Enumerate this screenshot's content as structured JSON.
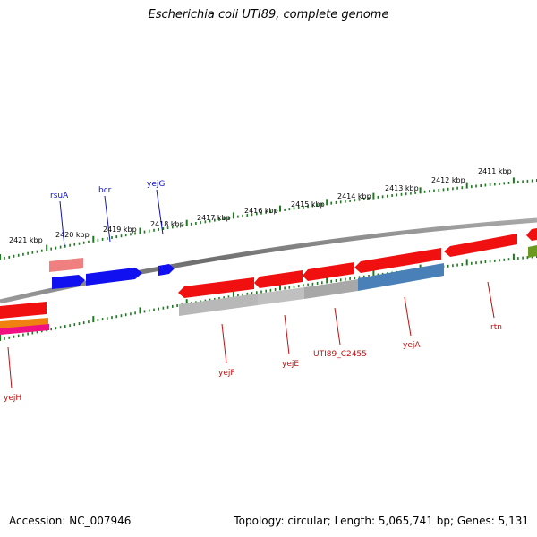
{
  "title": "Escherichia coli UTI89, complete genome",
  "footer": {
    "accession": "Accession: NC_007946",
    "summary": "Topology: circular; Length: 5,065,741 bp; Genes: 5,131"
  },
  "colors": {
    "backbone": "#7a7a7a",
    "ticks": "#1e7a1e",
    "tick_label": "#000000",
    "forward_label": "#1010c0",
    "reverse_label": "#c01010",
    "gene_red": "#f01010",
    "gene_blue": "#1010f0",
    "gene_pink": "#f08080",
    "gene_gray": "#b0b0b0",
    "gene_steel": "#4a80b8",
    "gene_orange": "#f08010",
    "gene_magenta": "#f01080",
    "gene_olive": "#6a9a20"
  },
  "scale_labels": [
    "2421 kbp",
    "2420 kbp",
    "2419 kbp",
    "2418 kbp",
    "2417 kbp",
    "2416 kbp",
    "2415 kbp",
    "2414 kbp",
    "2413 kbp",
    "2412 kbp",
    "2411 kbp"
  ],
  "forward_gene_labels": [
    "rsuA",
    "bcr",
    "yejG"
  ],
  "reverse_gene_labels": [
    "yejF",
    "yejE",
    "UTI89_C2455",
    "yejA",
    "rtn",
    "yejH"
  ]
}
